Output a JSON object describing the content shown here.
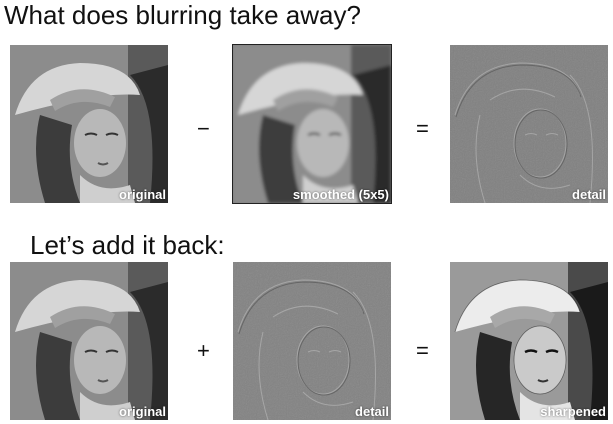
{
  "section1": {
    "title": "What does blurring take away?",
    "panels": {
      "a": "original",
      "b": "smoothed (5x5)",
      "c": "detail"
    },
    "operators": [
      "−",
      "="
    ]
  },
  "section2": {
    "title": "Let’s add it back:",
    "panels": {
      "a": "original",
      "b": "detail",
      "c": "sharpened"
    },
    "operators": [
      "+",
      "="
    ]
  }
}
